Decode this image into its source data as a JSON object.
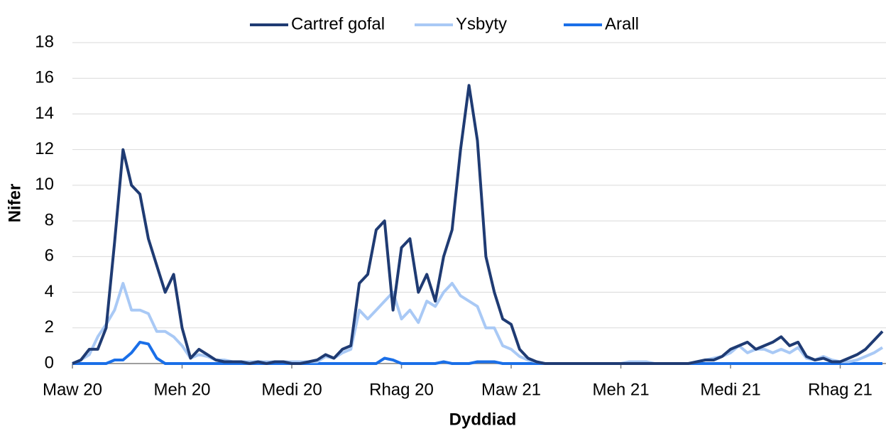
{
  "chart_data": {
    "type": "line",
    "x_label": "Dyddiad",
    "y_label": "Nifer",
    "categories": [
      "Maw 20",
      null,
      null,
      null,
      null,
      null,
      null,
      null,
      null,
      null,
      null,
      null,
      null,
      "Meh 20",
      null,
      null,
      null,
      null,
      null,
      null,
      null,
      null,
      null,
      null,
      null,
      null,
      "Medi 20",
      null,
      null,
      null,
      null,
      null,
      null,
      null,
      null,
      null,
      null,
      null,
      null,
      "Rhag 20",
      null,
      null,
      null,
      null,
      null,
      null,
      null,
      null,
      null,
      null,
      null,
      null,
      "Maw 21",
      null,
      null,
      null,
      null,
      null,
      null,
      null,
      null,
      null,
      null,
      null,
      null,
      "Meh 21",
      null,
      null,
      null,
      null,
      null,
      null,
      null,
      null,
      null,
      null,
      null,
      null,
      "Medi 21",
      null,
      null,
      null,
      null,
      null,
      null,
      null,
      null,
      null,
      null,
      null,
      null,
      "Rhag 21",
      null,
      null,
      null,
      null,
      null
    ],
    "series": [
      {
        "name": "Cartref gofal",
        "color": "#1f3b73",
        "values": [
          0,
          0.2,
          0.8,
          0.8,
          2,
          6.8,
          12,
          10,
          9.5,
          7,
          5.5,
          4,
          5,
          2,
          0.3,
          0.8,
          0.5,
          0.2,
          0.1,
          0.1,
          0.1,
          0,
          0.1,
          0,
          0.1,
          0.1,
          0,
          0,
          0.1,
          0.2,
          0.5,
          0.3,
          0.8,
          1,
          4.5,
          5,
          7.5,
          8,
          3,
          6.5,
          7,
          4,
          5,
          3.5,
          6,
          7.5,
          12,
          15.6,
          12.5,
          6,
          4,
          2.5,
          2.2,
          0.8,
          0.3,
          0.1,
          0,
          0,
          0,
          0,
          0,
          0,
          0,
          0,
          0,
          0,
          0,
          0,
          0,
          0,
          0,
          0,
          0,
          0,
          0.1,
          0.2,
          0.2,
          0.4,
          0.8,
          1,
          1.2,
          0.8,
          1,
          1.2,
          1.5,
          1,
          1.2,
          0.4,
          0.2,
          0.3,
          0.1,
          0.1,
          0.3,
          0.5,
          0.8,
          1.3,
          1.8
        ]
      },
      {
        "name": "Ysbyty",
        "color": "#a9c9f5",
        "values": [
          0,
          0.2,
          0.5,
          1.5,
          2.2,
          3,
          4.5,
          3,
          3,
          2.8,
          1.8,
          1.8,
          1.5,
          1,
          0.3,
          0.5,
          0.4,
          0.2,
          0.2,
          0.1,
          0.1,
          0.1,
          0.1,
          0.1,
          0.1,
          0.1,
          0.1,
          0.1,
          0.1,
          0.1,
          0.4,
          0.3,
          0.6,
          0.8,
          3,
          2.5,
          3,
          3.5,
          4,
          2.5,
          3,
          2.3,
          3.5,
          3.2,
          4,
          4.5,
          3.8,
          3.5,
          3.2,
          2,
          2,
          1,
          0.8,
          0.4,
          0.2,
          0.1,
          0,
          0,
          0,
          0,
          0,
          0,
          0,
          0,
          0,
          0,
          0.1,
          0.1,
          0.1,
          0,
          0,
          0,
          0,
          0,
          0.1,
          0.2,
          0.3,
          0.4,
          0.6,
          1,
          0.6,
          0.8,
          0.8,
          0.6,
          0.8,
          0.6,
          0.9,
          0.3,
          0.2,
          0.4,
          0.2,
          0.1,
          0.1,
          0.2,
          0.4,
          0.6,
          0.9
        ]
      },
      {
        "name": "Arall",
        "color": "#1a6fe8",
        "values": [
          0,
          0,
          0,
          0,
          0,
          0.2,
          0.2,
          0.6,
          1.2,
          1.1,
          0.3,
          0,
          0,
          0,
          0,
          0,
          0,
          0,
          0,
          0,
          0,
          0,
          0,
          0,
          0,
          0,
          0,
          0,
          0,
          0,
          0,
          0,
          0,
          0,
          0,
          0,
          0,
          0.3,
          0.2,
          0,
          0,
          0,
          0,
          0,
          0.1,
          0,
          0,
          0,
          0.1,
          0.1,
          0.1,
          0,
          0,
          0,
          0,
          0,
          0,
          0,
          0,
          0,
          0,
          0,
          0,
          0,
          0,
          0,
          0,
          0,
          0,
          0,
          0,
          0,
          0,
          0,
          0,
          0,
          0,
          0,
          0,
          0,
          0,
          0,
          0,
          0,
          0,
          0,
          0,
          0,
          0,
          0,
          0,
          0,
          0,
          0,
          0,
          0,
          0
        ]
      }
    ],
    "ylim": [
      0,
      18
    ],
    "yticks": [
      0,
      2,
      4,
      6,
      8,
      10,
      12,
      14,
      16,
      18
    ],
    "grid": true,
    "legend": "top"
  }
}
